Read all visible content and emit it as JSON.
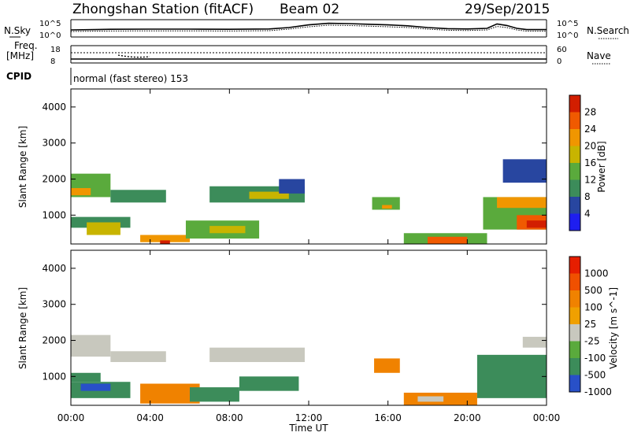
{
  "header": {
    "station": "Zhongshan Station (fitACF)",
    "beam": "Beam 02",
    "date": "29/Sep/2015"
  },
  "strip": {
    "nsky_label": "N.Sky",
    "nsearch_label": "N.Search",
    "freq_label_line1": "Freq.",
    "freq_label_line2": "[MHz]",
    "nave_label": "Nave",
    "cpid_label": "CPID",
    "noise_ticks_left": [
      "10^5",
      "10^0"
    ],
    "noise_ticks_right": [
      "10^5",
      "10^0"
    ],
    "freq_ticks": [
      "18",
      "8"
    ],
    "nave_ticks": [
      "60",
      "0"
    ],
    "cpid_text": "normal (fast stereo) 153"
  },
  "chart_data": [
    {
      "type": "heatmap",
      "name": "power",
      "ylabel": "Slant Range [km]",
      "xlabel": "",
      "yticks": [
        "1000",
        "2000",
        "3000",
        "4000"
      ],
      "ylim": [
        200,
        4500
      ],
      "xlim": [
        0,
        24
      ],
      "colorbar": {
        "label": "Power [dB]",
        "ticks": [
          "4",
          "8",
          "12",
          "16",
          "20",
          "24",
          "28"
        ],
        "colors": [
          "#1e1ef0",
          "#2846a0",
          "#3c8c5a",
          "#5aaa3c",
          "#c8b400",
          "#f09600",
          "#f05a00",
          "#d21e00"
        ]
      },
      "regions": [
        {
          "t0": 0.0,
          "t1": 2.0,
          "r0": 1500,
          "r1": 2150,
          "c": 3
        },
        {
          "t0": 0.0,
          "t1": 1.0,
          "r0": 1550,
          "r1": 1750,
          "c": 5
        },
        {
          "t0": 0.0,
          "t1": 3.0,
          "r0": 650,
          "r1": 950,
          "c": 2
        },
        {
          "t0": 0.8,
          "t1": 2.5,
          "r0": 450,
          "r1": 800,
          "c": 4
        },
        {
          "t0": 2.0,
          "t1": 4.8,
          "r0": 1350,
          "r1": 1700,
          "c": 2
        },
        {
          "t0": 3.5,
          "t1": 6.0,
          "r0": 250,
          "r1": 450,
          "c": 5
        },
        {
          "t0": 4.5,
          "t1": 5.0,
          "r0": 200,
          "r1": 300,
          "c": 7
        },
        {
          "t0": 5.8,
          "t1": 9.5,
          "r0": 350,
          "r1": 850,
          "c": 3
        },
        {
          "t0": 7.0,
          "t1": 8.8,
          "r0": 500,
          "r1": 700,
          "c": 4
        },
        {
          "t0": 7.0,
          "t1": 11.8,
          "r0": 1350,
          "r1": 1800,
          "c": 2
        },
        {
          "t0": 9.0,
          "t1": 11.0,
          "r0": 1450,
          "r1": 1650,
          "c": 4
        },
        {
          "t0": 10.5,
          "t1": 11.8,
          "r0": 1600,
          "r1": 2000,
          "c": 1
        },
        {
          "t0": 15.2,
          "t1": 16.6,
          "r0": 1150,
          "r1": 1500,
          "c": 3
        },
        {
          "t0": 15.7,
          "t1": 16.2,
          "r0": 1180,
          "r1": 1280,
          "c": 5
        },
        {
          "t0": 16.8,
          "t1": 21.0,
          "r0": 200,
          "r1": 500,
          "c": 3
        },
        {
          "t0": 18.0,
          "t1": 20.0,
          "r0": 200,
          "r1": 400,
          "c": 6
        },
        {
          "t0": 20.8,
          "t1": 24.0,
          "r0": 600,
          "r1": 1500,
          "c": 3
        },
        {
          "t0": 22.5,
          "t1": 24.0,
          "r0": 600,
          "r1": 1000,
          "c": 6
        },
        {
          "t0": 23.0,
          "t1": 24.0,
          "r0": 650,
          "r1": 850,
          "c": 7
        },
        {
          "t0": 21.5,
          "t1": 24.0,
          "r0": 1200,
          "r1": 1500,
          "c": 5
        },
        {
          "t0": 21.8,
          "t1": 24.0,
          "r0": 1900,
          "r1": 2550,
          "c": 1
        }
      ]
    },
    {
      "type": "heatmap",
      "name": "velocity",
      "ylabel": "Slant Range [km]",
      "xlabel": "Time UT",
      "xticks": [
        "00:00",
        "04:00",
        "08:00",
        "12:00",
        "16:00",
        "20:00",
        "00:00"
      ],
      "yticks": [
        "1000",
        "2000",
        "3000",
        "4000"
      ],
      "ylim": [
        200,
        4500
      ],
      "xlim": [
        0,
        24
      ],
      "colorbar": {
        "label": "Velocity [m s^-1]",
        "ticks": [
          "1000",
          "500",
          "100",
          "25",
          "-25",
          "-100",
          "-500",
          "-1000"
        ],
        "colors": [
          "#2850c8",
          "#3c8c5a",
          "#5aaa3c",
          "#c8c8be",
          "#f0a000",
          "#f08200",
          "#f05000",
          "#e61e00"
        ]
      },
      "regions": [
        {
          "t0": 0.0,
          "t1": 2.0,
          "r0": 1550,
          "r1": 2150,
          "c": 3
        },
        {
          "t0": 0.0,
          "t1": 1.5,
          "r0": 850,
          "r1": 1100,
          "c": 1
        },
        {
          "t0": 0.0,
          "t1": 3.0,
          "r0": 400,
          "r1": 850,
          "c": 1
        },
        {
          "t0": 0.5,
          "t1": 2.0,
          "r0": 600,
          "r1": 800,
          "c": 0
        },
        {
          "t0": 2.0,
          "t1": 4.8,
          "r0": 1400,
          "r1": 1700,
          "c": 3
        },
        {
          "t0": 3.5,
          "t1": 6.5,
          "r0": 250,
          "r1": 800,
          "c": 5
        },
        {
          "t0": 6.0,
          "t1": 8.5,
          "r0": 300,
          "r1": 700,
          "c": 1
        },
        {
          "t0": 7.0,
          "t1": 11.8,
          "r0": 1400,
          "r1": 1800,
          "c": 3
        },
        {
          "t0": 8.5,
          "t1": 11.5,
          "r0": 600,
          "r1": 1000,
          "c": 1
        },
        {
          "t0": 15.3,
          "t1": 16.6,
          "r0": 1100,
          "r1": 1500,
          "c": 5
        },
        {
          "t0": 16.8,
          "t1": 20.5,
          "r0": 200,
          "r1": 550,
          "c": 5
        },
        {
          "t0": 17.5,
          "t1": 18.8,
          "r0": 300,
          "r1": 450,
          "c": 3
        },
        {
          "t0": 20.5,
          "t1": 24.0,
          "r0": 400,
          "r1": 1600,
          "c": 1
        },
        {
          "t0": 22.8,
          "t1": 24.0,
          "r0": 1800,
          "r1": 2100,
          "c": 3
        }
      ]
    }
  ],
  "noise_profile": {
    "x": [
      0,
      2,
      4,
      6,
      8,
      10,
      11,
      12,
      13,
      14,
      15,
      16,
      17,
      18,
      19,
      20,
      21,
      21.5,
      22,
      22.5,
      23,
      24
    ],
    "nsky": [
      0.4,
      0.44,
      0.45,
      0.45,
      0.44,
      0.46,
      0.55,
      0.72,
      0.82,
      0.8,
      0.76,
      0.72,
      0.66,
      0.55,
      0.48,
      0.46,
      0.5,
      0.78,
      0.68,
      0.5,
      0.42,
      0.42
    ],
    "nsearch": [
      0.3,
      0.33,
      0.34,
      0.34,
      0.33,
      0.35,
      0.45,
      0.6,
      0.7,
      0.68,
      0.64,
      0.6,
      0.55,
      0.45,
      0.38,
      0.36,
      0.4,
      0.62,
      0.55,
      0.4,
      0.32,
      0.32
    ]
  }
}
